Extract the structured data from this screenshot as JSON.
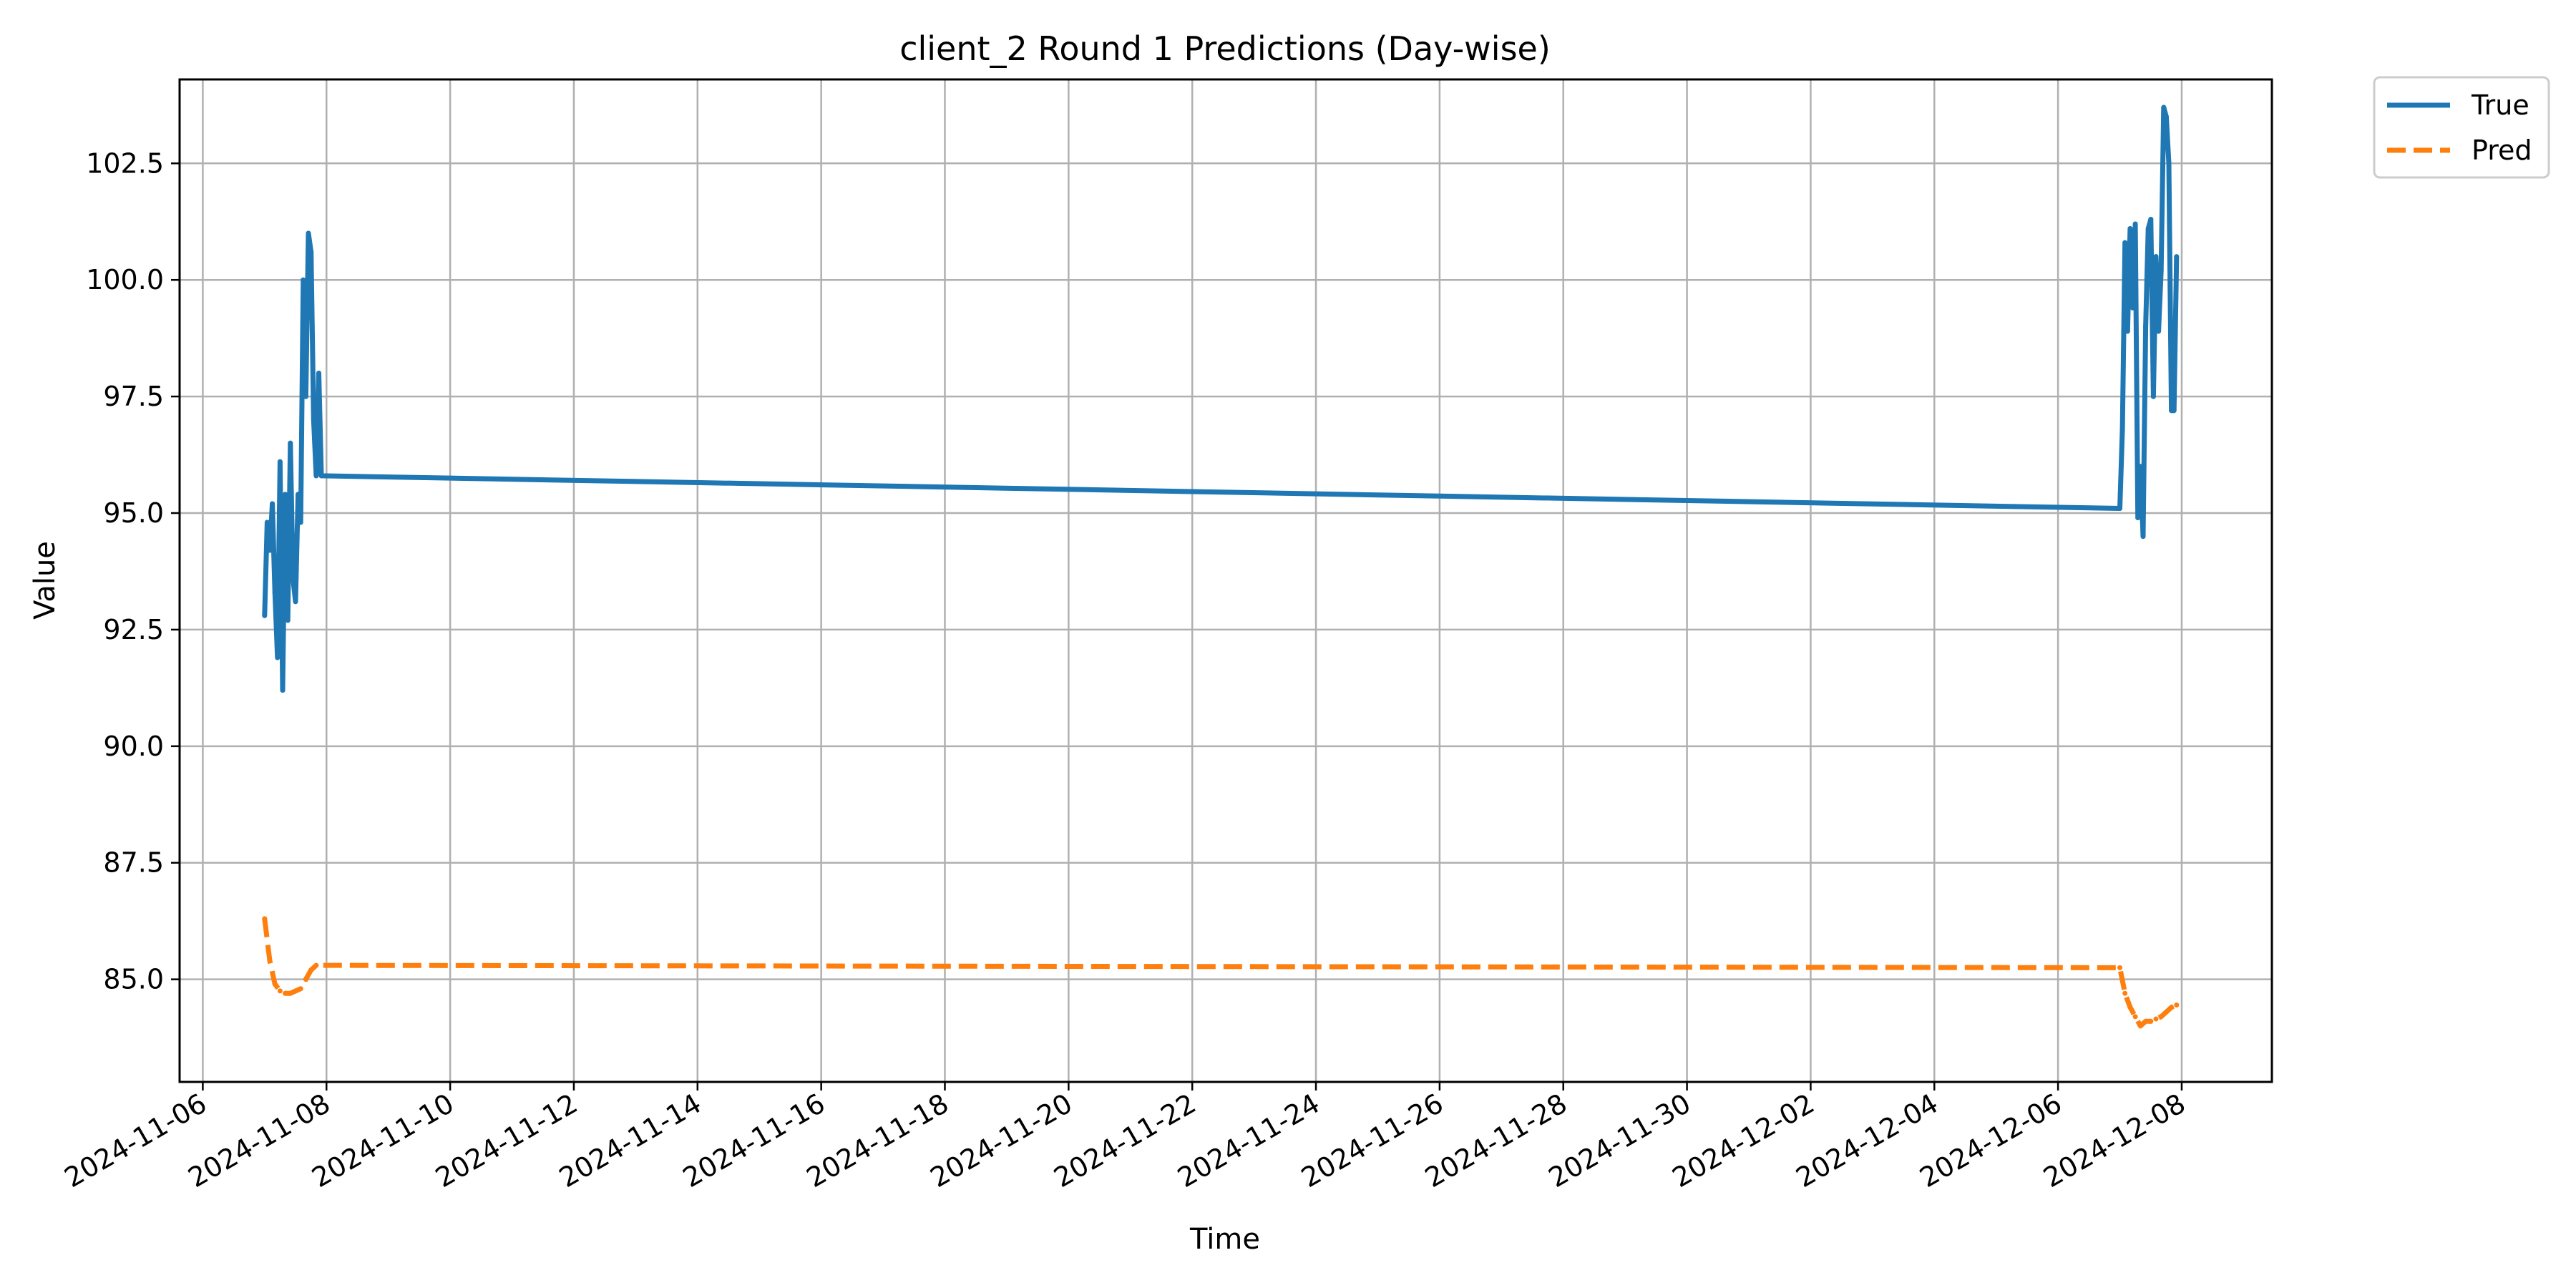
{
  "chart_data": {
    "type": "line",
    "title": "client_2 Round 1 Predictions (Day-wise)",
    "xlabel": "Time",
    "ylabel": "Value",
    "x_type": "date",
    "xlim": [
      "2024-11-05T15:00",
      "2024-12-09T11:00"
    ],
    "ylim": [
      82.8,
      104.3
    ],
    "grid": true,
    "legend": {
      "placement": "outside-top-right"
    },
    "x_ticks": [
      "2024-11-06",
      "2024-11-08",
      "2024-11-10",
      "2024-11-12",
      "2024-11-14",
      "2024-11-16",
      "2024-11-18",
      "2024-11-20",
      "2024-11-22",
      "2024-11-24",
      "2024-11-26",
      "2024-11-28",
      "2024-11-30",
      "2024-12-02",
      "2024-12-04",
      "2024-12-06",
      "2024-12-08"
    ],
    "y_ticks": [
      "85.0",
      "87.5",
      "90.0",
      "92.5",
      "95.0",
      "97.5",
      "100.0",
      "102.5"
    ],
    "series": [
      {
        "name": "True",
        "color": "#1f77b4",
        "style": "solid",
        "points": [
          [
            "2024-11-07T00:00",
            92.8
          ],
          [
            "2024-11-07T01:00",
            94.8
          ],
          [
            "2024-11-07T02:00",
            94.2
          ],
          [
            "2024-11-07T03:00",
            95.2
          ],
          [
            "2024-11-07T04:00",
            93.3
          ],
          [
            "2024-11-07T05:00",
            91.9
          ],
          [
            "2024-11-07T06:00",
            96.1
          ],
          [
            "2024-11-07T07:00",
            91.2
          ],
          [
            "2024-11-07T08:00",
            95.4
          ],
          [
            "2024-11-07T09:00",
            92.7
          ],
          [
            "2024-11-07T10:00",
            96.5
          ],
          [
            "2024-11-07T11:00",
            93.6
          ],
          [
            "2024-11-07T12:00",
            93.1
          ],
          [
            "2024-11-07T13:00",
            95.4
          ],
          [
            "2024-11-07T14:00",
            94.8
          ],
          [
            "2024-11-07T15:00",
            100.0
          ],
          [
            "2024-11-07T16:00",
            97.5
          ],
          [
            "2024-11-07T17:00",
            101.0
          ],
          [
            "2024-11-07T18:00",
            100.6
          ],
          [
            "2024-11-07T19:00",
            97.0
          ],
          [
            "2024-11-07T20:00",
            95.8
          ],
          [
            "2024-11-07T21:00",
            98.0
          ],
          [
            "2024-11-07T22:00",
            95.8
          ],
          [
            "2024-12-07T00:00",
            95.1
          ],
          [
            "2024-12-07T01:00",
            96.8
          ],
          [
            "2024-12-07T02:00",
            100.8
          ],
          [
            "2024-12-07T03:00",
            98.9
          ],
          [
            "2024-12-07T04:00",
            101.1
          ],
          [
            "2024-12-07T05:00",
            99.4
          ],
          [
            "2024-12-07T06:00",
            101.2
          ],
          [
            "2024-12-07T07:00",
            94.9
          ],
          [
            "2024-12-07T08:00",
            96.0
          ],
          [
            "2024-12-07T09:00",
            94.5
          ],
          [
            "2024-12-07T10:00",
            99.0
          ],
          [
            "2024-12-07T11:00",
            101.1
          ],
          [
            "2024-12-07T12:00",
            101.3
          ],
          [
            "2024-12-07T13:00",
            97.5
          ],
          [
            "2024-12-07T14:00",
            100.5
          ],
          [
            "2024-12-07T15:00",
            98.9
          ],
          [
            "2024-12-07T16:00",
            100.2
          ],
          [
            "2024-12-07T17:00",
            103.7
          ],
          [
            "2024-12-07T18:00",
            103.5
          ],
          [
            "2024-12-07T19:00",
            102.5
          ],
          [
            "2024-12-07T20:00",
            97.2
          ],
          [
            "2024-12-07T21:00",
            97.2
          ],
          [
            "2024-12-07T22:00",
            100.5
          ]
        ]
      },
      {
        "name": "Pred",
        "color": "#ff7f0e",
        "style": "dashed",
        "points": [
          [
            "2024-11-07T00:00",
            86.3
          ],
          [
            "2024-11-07T02:00",
            85.4
          ],
          [
            "2024-11-07T04:00",
            84.9
          ],
          [
            "2024-11-07T06:00",
            84.75
          ],
          [
            "2024-11-07T08:00",
            84.7
          ],
          [
            "2024-11-07T10:00",
            84.7
          ],
          [
            "2024-11-07T12:00",
            84.75
          ],
          [
            "2024-11-07T14:00",
            84.8
          ],
          [
            "2024-11-07T16:00",
            85.0
          ],
          [
            "2024-11-07T18:00",
            85.2
          ],
          [
            "2024-11-07T20:00",
            85.3
          ],
          [
            "2024-12-07T00:00",
            85.25
          ],
          [
            "2024-12-07T02:00",
            84.7
          ],
          [
            "2024-12-07T04:00",
            84.4
          ],
          [
            "2024-12-07T06:00",
            84.2
          ],
          [
            "2024-12-07T08:00",
            84.0
          ],
          [
            "2024-12-07T10:00",
            84.1
          ],
          [
            "2024-12-07T12:00",
            84.1
          ],
          [
            "2024-12-07T14:00",
            84.15
          ],
          [
            "2024-12-07T16:00",
            84.2
          ],
          [
            "2024-12-07T18:00",
            84.3
          ],
          [
            "2024-12-07T20:00",
            84.4
          ],
          [
            "2024-12-07T22:00",
            84.45
          ]
        ]
      }
    ]
  }
}
